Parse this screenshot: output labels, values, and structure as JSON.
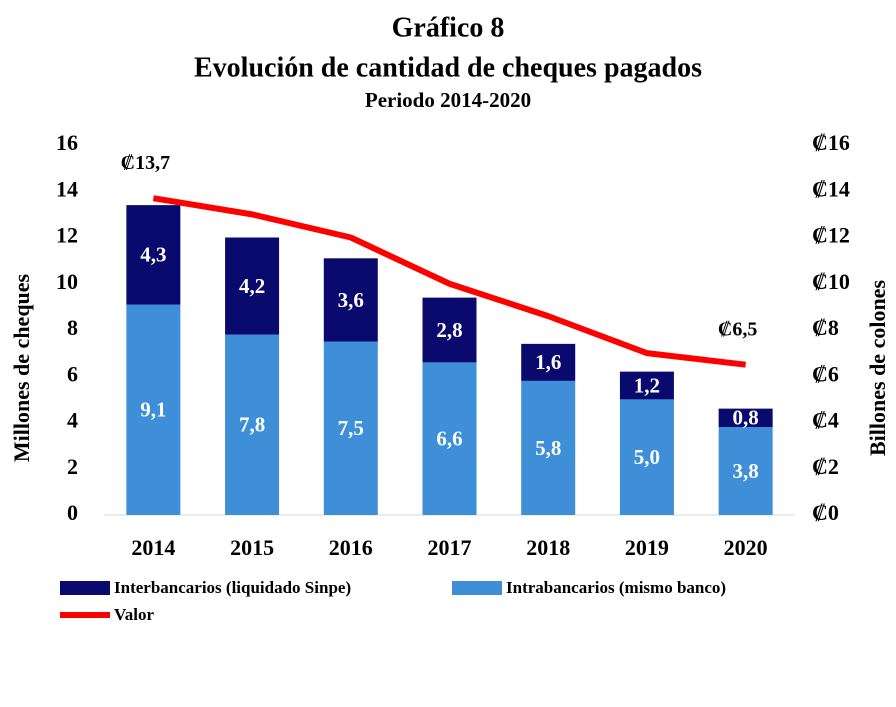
{
  "chart_data": {
    "type": "bar",
    "title": "Gráfico 8",
    "subtitle": "Evolución de cantidad de cheques pagados",
    "subtitle2": "Periodo 2014-2020",
    "ylabel": "Millones de cheques",
    "y2label": "Billones de colones",
    "stacked": true,
    "categories": [
      "2014",
      "2015",
      "2016",
      "2017",
      "2018",
      "2019",
      "2020"
    ],
    "series": [
      {
        "name": "Intrabancarios (mismo banco)",
        "color": "#3e8ed8",
        "values": [
          9.1,
          7.8,
          7.5,
          6.6,
          5.8,
          5.0,
          3.8
        ],
        "value_labels": [
          "9,1",
          "7,8",
          "7,5",
          "6,6",
          "5,8",
          "5,0",
          "3,8"
        ]
      },
      {
        "name": "Interbancarios (liquidado Sinpe)",
        "color": "#0a0a6e",
        "values": [
          4.3,
          4.2,
          3.6,
          2.8,
          1.6,
          1.2,
          0.8
        ],
        "value_labels": [
          "4,3",
          "4,2",
          "3,6",
          "2,8",
          "1,6",
          "1,2",
          "0,8"
        ]
      },
      {
        "name": "Valor",
        "color": "#ff0000",
        "type": "line",
        "axis": "y2",
        "values": [
          13.7,
          13.0,
          12.0,
          10.0,
          8.6,
          7.0,
          6.5
        ],
        "value_labels": [
          "₡13,7",
          null,
          null,
          null,
          null,
          null,
          "₡6,5"
        ]
      }
    ],
    "ylim": [
      0,
      16
    ],
    "yticks": [
      0,
      2,
      4,
      6,
      8,
      10,
      12,
      14,
      16
    ],
    "y2lim": [
      0,
      16
    ],
    "y2ticks": [
      {
        "value": 0,
        "label": "₡0"
      },
      {
        "value": 2,
        "label": "₡2"
      },
      {
        "value": 4,
        "label": "₡4"
      },
      {
        "value": 6,
        "label": "₡6"
      },
      {
        "value": 8,
        "label": "₡8"
      },
      {
        "value": 10,
        "label": "₡10"
      },
      {
        "value": 12,
        "label": "₡12"
      },
      {
        "value": 14,
        "label": "₡14"
      },
      {
        "value": 16,
        "label": "₡16"
      }
    ],
    "grid": false
  }
}
